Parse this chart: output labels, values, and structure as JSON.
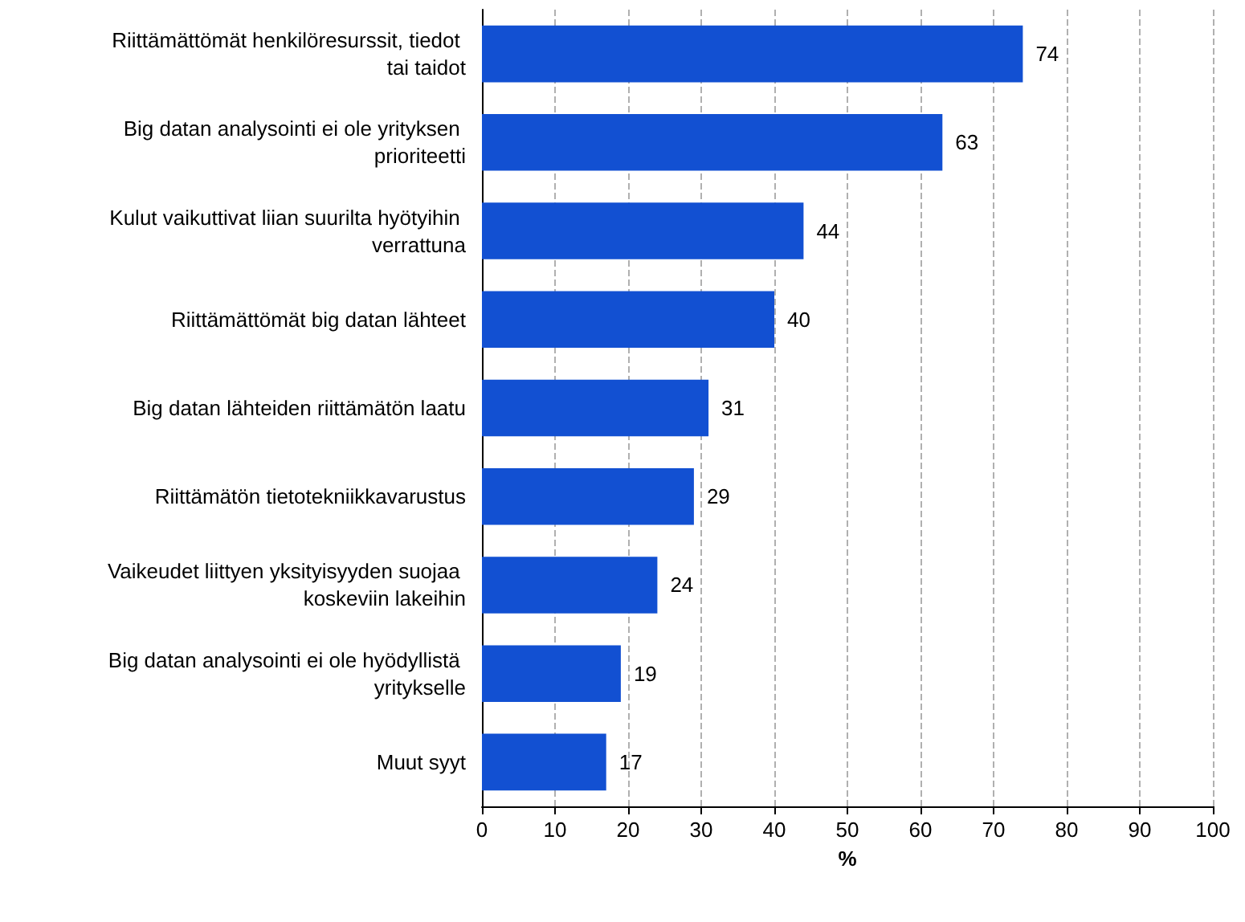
{
  "chart_data": {
    "type": "bar",
    "orientation": "horizontal",
    "xlabel": "%",
    "categories": [
      "Riittämättömät henkilöresurssit, tiedot tai taidot",
      "Big datan analysointi ei ole yrityksen prioriteetti",
      "Kulut vaikuttivat liian suurilta hyötyihin verrattuna",
      "Riittämättömät big datan lähteet",
      "Big datan lähteiden riittämätön laatu",
      "Riittämätön tietotekniikkavarustus",
      "Vaikeudet liittyen yksityisyyden suojaa koskeviin lakeihin",
      "Big datan analysointi ei ole hyödyllistä yritykselle",
      "Muut syyt"
    ],
    "values": [
      74,
      63,
      44,
      40,
      31,
      29,
      24,
      19,
      17
    ],
    "color": "#1250d2",
    "data_labels": true,
    "grid": "x",
    "xlim": [
      0,
      100
    ],
    "xticks": [
      0,
      10,
      20,
      30,
      40,
      50,
      60,
      70,
      80,
      90,
      100
    ]
  }
}
